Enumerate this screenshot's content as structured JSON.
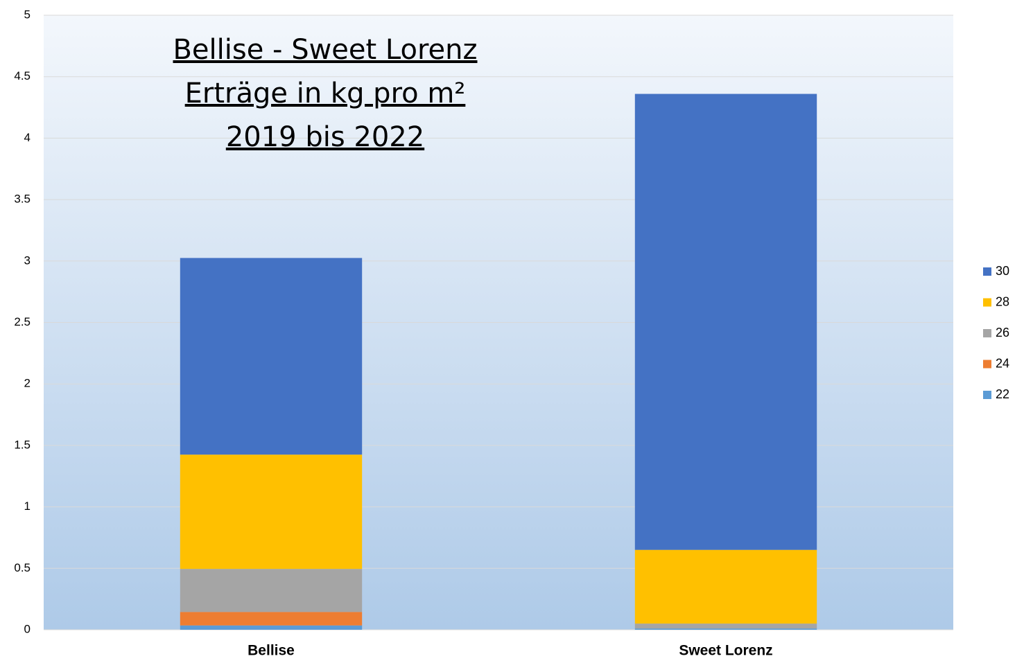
{
  "chart_data": {
    "type": "stacked_bar",
    "title": [
      "Bellise - Sweet Lorenz ",
      "Erträge in kg pro m²",
      "2019 bis 2022"
    ],
    "categories": [
      "Bellise",
      "Sweet Lorenz"
    ],
    "series": [
      {
        "name": "22",
        "color": "#5b9bd5",
        "values": [
          0.035,
          0.01
        ]
      },
      {
        "name": "24",
        "color": "#ed7d31",
        "values": [
          0.11,
          0
        ]
      },
      {
        "name": "26",
        "color": "#a5a5a5",
        "values": [
          0.35,
          0.04
        ]
      },
      {
        "name": "28",
        "color": "#ffc000",
        "values": [
          0.93,
          0.6
        ]
      },
      {
        "name": "30",
        "color": "#4472c4",
        "values": [
          1.6,
          3.71
        ]
      }
    ],
    "ylim": [
      0,
      5
    ],
    "yticks": [
      0,
      0.5,
      1,
      1.5,
      2,
      2.5,
      3,
      3.5,
      4,
      4.5,
      5
    ],
    "grid": true,
    "legend": "right"
  }
}
